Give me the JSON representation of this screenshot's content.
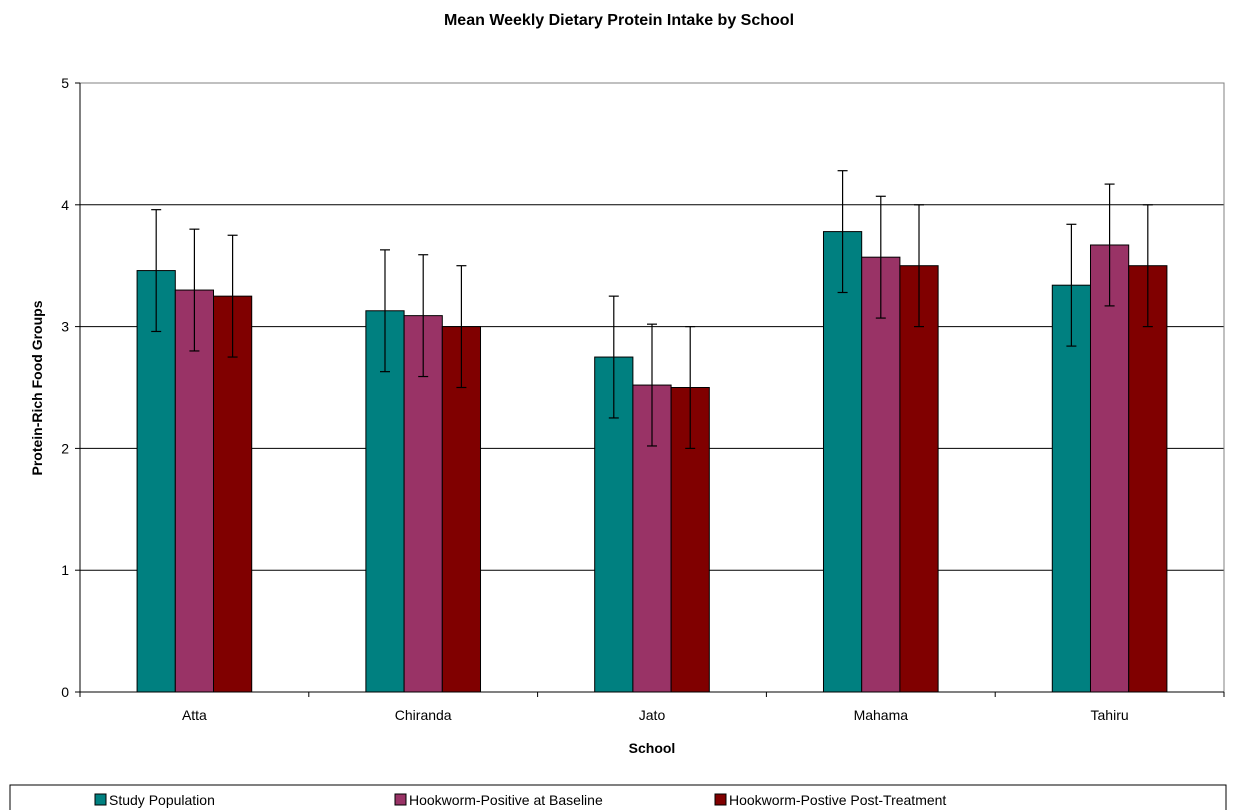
{
  "chart_data": {
    "type": "bar",
    "title": "Mean Weekly Dietary Protein Intake by School",
    "xlabel": "School",
    "ylabel": "Protein-Rich Food Groups",
    "ylim": [
      0,
      5
    ],
    "yticks": [
      0,
      1,
      2,
      3,
      4,
      5
    ],
    "grid": true,
    "legend_position": "bottom",
    "categories": [
      "Atta",
      "Chiranda",
      "Jato",
      "Mahama",
      "Tahiru"
    ],
    "series": [
      {
        "name": "Study Population",
        "color": "#008080",
        "values": [
          3.46,
          3.13,
          2.75,
          3.78,
          3.34
        ],
        "error": [
          0.5,
          0.5,
          0.5,
          0.5,
          0.5
        ]
      },
      {
        "name": "Hookworm-Positive at Baseline",
        "color": "#993366",
        "values": [
          3.3,
          3.09,
          2.52,
          3.57,
          3.67
        ],
        "error": [
          0.5,
          0.5,
          0.5,
          0.5,
          0.5
        ]
      },
      {
        "name": "Hookworm-Postive Post-Treatment",
        "color": "#800000",
        "values": [
          3.25,
          3.0,
          2.5,
          3.5,
          3.5
        ],
        "error": [
          0.5,
          0.5,
          0.5,
          0.5,
          0.5
        ]
      }
    ]
  }
}
